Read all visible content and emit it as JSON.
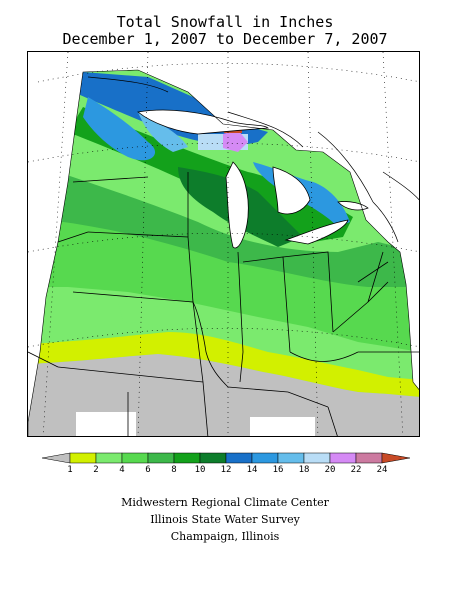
{
  "title": {
    "line1": "Total Snowfall in Inches",
    "line2": "December 1, 2007 to December 7, 2007"
  },
  "legend": {
    "items": [
      {
        "value": "1",
        "color": "#c0c0c0"
      },
      {
        "value": "2",
        "color": "#d2f000"
      },
      {
        "value": "4",
        "color": "#7bea6e"
      },
      {
        "value": "6",
        "color": "#57d94f"
      },
      {
        "value": "8",
        "color": "#3db84a"
      },
      {
        "value": "10",
        "color": "#13a11b"
      },
      {
        "value": "12",
        "color": "#0d7d2b"
      },
      {
        "value": "14",
        "color": "#1870c8"
      },
      {
        "value": "16",
        "color": "#2c98e0"
      },
      {
        "value": "18",
        "color": "#65bdeb"
      },
      {
        "value": "20",
        "color": "#b9ddf6"
      },
      {
        "value": "22",
        "color": "#d58af5"
      },
      {
        "value": "24",
        "color": "#cc7aa0"
      }
    ],
    "top_color": "#c84a26",
    "bottom_color": "#c0c0c0"
  },
  "credits": {
    "line1": "Midwestern Regional Climate Center",
    "line2": "Illinois State Water Survey",
    "line3": "Champaign, Illinois"
  }
}
